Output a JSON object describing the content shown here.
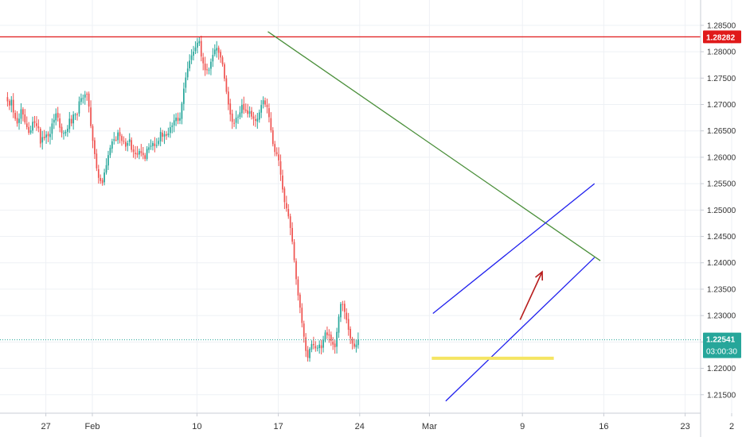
{
  "colors": {
    "background": "#ffffff",
    "grid": "#eef1f5",
    "axis_text": "#333333",
    "candle_up": "#26a69a",
    "candle_down": "#ef5350",
    "resistance_line": "#e0191a",
    "trend_line": "#4a8f3a",
    "channel": "#2020ee",
    "support_zone": "#f5e563",
    "arrow": "#b71c1c",
    "current_price_line": "#26a69a",
    "current_price_badge": "#26a69a",
    "resistance_badge": "#e0191a"
  },
  "chart_data": {
    "type": "candlestick",
    "title": "",
    "xlabel": "",
    "ylabel": "",
    "ylim": [
      1.2115,
      1.2898
    ],
    "grid": true,
    "y_ticks": [
      "1.28500",
      "1.28000",
      "1.27500",
      "1.27000",
      "1.26500",
      "1.26000",
      "1.25500",
      "1.25000",
      "1.24500",
      "1.24000",
      "1.23500",
      "1.23000",
      "1.22500",
      "1.22000",
      "1.21500"
    ],
    "x_ticks": [
      {
        "label": "27",
        "day": -4
      },
      {
        "label": "Feb",
        "day": 0
      },
      {
        "label": "10",
        "day": 9
      },
      {
        "label": "17",
        "day": 16
      },
      {
        "label": "24",
        "day": 23
      },
      {
        "label": "Mar",
        "day": 29
      },
      {
        "label": "9",
        "day": 37
      },
      {
        "label": "16",
        "day": 44
      },
      {
        "label": "23",
        "day": 51
      },
      {
        "label": "2",
        "day": 55
      }
    ],
    "resistance_level": {
      "value": 1.28282,
      "label": "1.28282"
    },
    "current_price": {
      "value": 1.22541,
      "label": "1.22541",
      "countdown": "03:00:30"
    },
    "trendline": {
      "start": {
        "day": 15.1,
        "price": 1.2838
      },
      "end": {
        "day": 43.7,
        "price": 1.2404
      }
    },
    "channel_upper": {
      "start": {
        "day": 29.3,
        "price": 1.2304
      },
      "end": {
        "day": 43.2,
        "price": 1.255
      }
    },
    "channel_lower": {
      "start": {
        "day": 30.4,
        "price": 1.2138
      },
      "end": {
        "day": 43.2,
        "price": 1.241
      }
    },
    "support_zone": {
      "start_day": 29.2,
      "end_day": 39.7,
      "price": 1.2219
    },
    "arrow": {
      "start": {
        "day": 36.8,
        "price": 1.2292
      },
      "end": {
        "day": 38.7,
        "price": 1.2383
      }
    },
    "start_day": -7.3,
    "bars_per_day": 6,
    "closes": [
      1.2706,
      1.2698,
      1.2709,
      1.2685,
      1.2673,
      1.2664,
      1.2673,
      1.2691,
      1.2681,
      1.2666,
      1.2657,
      1.2646,
      1.2651,
      1.2667,
      1.2665,
      1.2659,
      1.2655,
      1.2626,
      1.2638,
      1.2636,
      1.2643,
      1.264,
      1.2644,
      1.2664,
      1.2671,
      1.2683,
      1.2675,
      1.2656,
      1.2646,
      1.2646,
      1.2648,
      1.2654,
      1.2673,
      1.2664,
      1.2681,
      1.2681,
      1.2681,
      1.2706,
      1.2712,
      1.2712,
      1.2719,
      1.272,
      1.2696,
      1.2659,
      1.2631,
      1.2606,
      1.2579,
      1.2561,
      1.2555,
      1.2551,
      1.2571,
      1.2585,
      1.2604,
      1.2618,
      1.263,
      1.2634,
      1.2633,
      1.2647,
      1.264,
      1.2631,
      1.263,
      1.262,
      1.2627,
      1.2634,
      1.2614,
      1.261,
      1.2606,
      1.2605,
      1.2612,
      1.2608,
      1.2604,
      1.2597,
      1.2616,
      1.2619,
      1.2622,
      1.2627,
      1.2621,
      1.2623,
      1.2631,
      1.2648,
      1.2639,
      1.2644,
      1.2641,
      1.2645,
      1.2657,
      1.266,
      1.267,
      1.2675,
      1.2669,
      1.2674,
      1.2702,
      1.273,
      1.2751,
      1.2768,
      1.2783,
      1.2793,
      1.28,
      1.2808,
      1.2817,
      1.282,
      1.2791,
      1.2778,
      1.2765,
      1.2766,
      1.2766,
      1.2781,
      1.2794,
      1.2804,
      1.2807,
      1.2798,
      1.2789,
      1.2776,
      1.2749,
      1.2724,
      1.27,
      1.2681,
      1.2667,
      1.2664,
      1.2675,
      1.2677,
      1.2685,
      1.2699,
      1.269,
      1.2688,
      1.2682,
      1.2687,
      1.2677,
      1.2673,
      1.2669,
      1.2673,
      1.2685,
      1.2699,
      1.2708,
      1.27,
      1.2695,
      1.2676,
      1.2651,
      1.2625,
      1.261,
      1.2606,
      1.2594,
      1.2567,
      1.2539,
      1.2515,
      1.2503,
      1.2488,
      1.2466,
      1.244,
      1.2405,
      1.2369,
      1.2338,
      1.2315,
      1.2286,
      1.226,
      1.2233,
      1.222,
      1.2237,
      1.2246,
      1.2244,
      1.2238,
      1.2239,
      1.2245,
      1.2238,
      1.2254,
      1.2268,
      1.2263,
      1.2262,
      1.2252,
      1.2245,
      1.224,
      1.2269,
      1.2298,
      1.2322,
      1.2321,
      1.2307,
      1.2292,
      1.2273,
      1.2257,
      1.2247,
      1.2241,
      1.2245,
      1.2254
    ]
  },
  "axis": {
    "price_label": "1.28282",
    "current_price_label": "1.22541",
    "countdown_label": "03:00:30"
  }
}
